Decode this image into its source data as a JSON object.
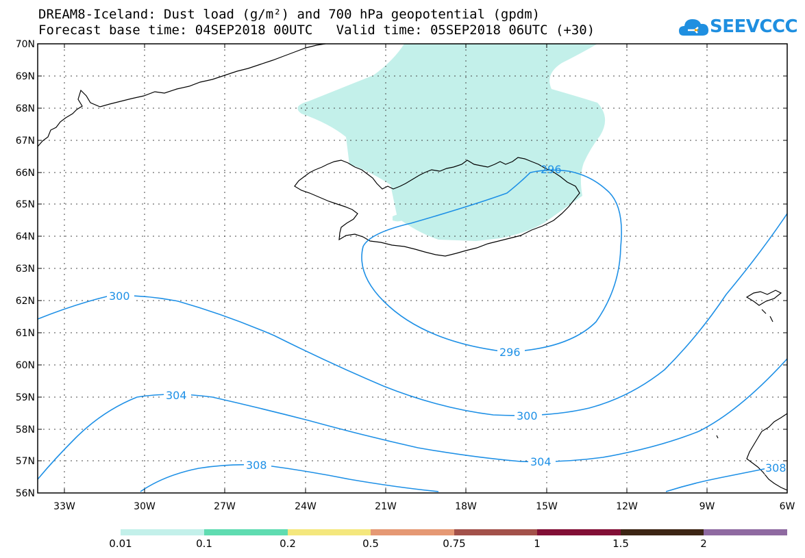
{
  "title": {
    "line1": "DREAM8-Iceland: Dust load (g/m²) and 700 hPa geopotential (gpdm)",
    "line2": "Forecast base time: 04SEP2018 00UTC   Valid time: 05SEP2018 06UTC (+30)"
  },
  "logo": {
    "text": "SEEVCCC",
    "icon": "cloud-icon"
  },
  "axes": {
    "lat_labels": [
      "70N",
      "69N",
      "68N",
      "67N",
      "66N",
      "65N",
      "64N",
      "63N",
      "62N",
      "61N",
      "60N",
      "59N",
      "58N",
      "57N",
      "56N"
    ],
    "lon_labels": [
      "33W",
      "30W",
      "27W",
      "24W",
      "21W",
      "18W",
      "15W",
      "12W",
      "9W",
      "6W"
    ]
  },
  "contours": [
    {
      "label": "296",
      "color": "#1e90e6"
    },
    {
      "label": "296",
      "color": "#1e90e6"
    },
    {
      "label": "300",
      "color": "#1e90e6"
    },
    {
      "label": "300",
      "color": "#1e90e6"
    },
    {
      "label": "304",
      "color": "#1e90e6"
    },
    {
      "label": "304",
      "color": "#1e90e6"
    },
    {
      "label": "308",
      "color": "#1e90e6"
    },
    {
      "label": "308",
      "color": "#1e90e6"
    }
  ],
  "dust_fill_color": "#c3f0ea",
  "colorbar": {
    "colors": [
      "#c3f0ea",
      "#5fdcb1",
      "#f4e77d",
      "#e59874",
      "#a3514a",
      "#820f36",
      "#3d2514",
      "#8f6aa1"
    ],
    "labels": [
      "0.01",
      "0.1",
      "0.2",
      "0.5",
      "0.75",
      "1",
      "1.5",
      "2"
    ]
  }
}
